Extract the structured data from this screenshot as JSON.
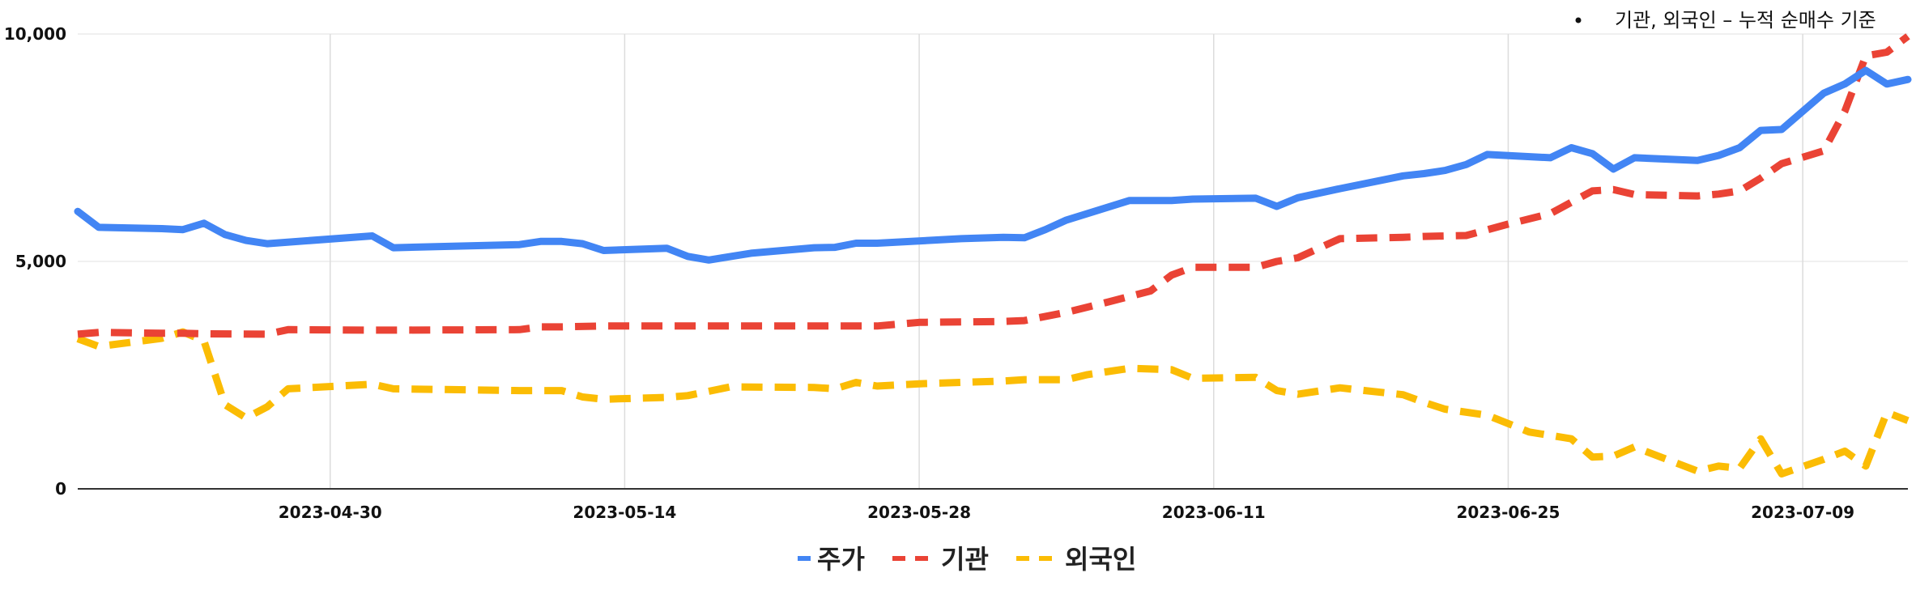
{
  "chart_data": {
    "type": "line",
    "title": "",
    "xlabel": "",
    "ylabel": "",
    "ylim": [
      0,
      10000
    ],
    "xlim": [
      "2023-04-18",
      "2023-07-14"
    ],
    "grid": true,
    "legend_position": "bottom",
    "annotation": "기관, 외국인 – 누적 순매수 기준",
    "y_ticks": [
      {
        "value": 0,
        "label": "0"
      },
      {
        "value": 5000,
        "label": "5,000"
      },
      {
        "value": 10000,
        "label": "10,000"
      }
    ],
    "x_ticks": [
      {
        "value": "2023-04-30",
        "label": "2023-04-30"
      },
      {
        "value": "2023-05-14",
        "label": "2023-05-14"
      },
      {
        "value": "2023-05-28",
        "label": "2023-05-28"
      },
      {
        "value": "2023-06-11",
        "label": "2023-06-11"
      },
      {
        "value": "2023-06-25",
        "label": "2023-06-25"
      },
      {
        "value": "2023-07-09",
        "label": "2023-07-09"
      }
    ],
    "series": [
      {
        "name": "주가",
        "color": "#4285F4",
        "style": "solid",
        "points": [
          [
            "2023-04-18",
            6100
          ],
          [
            "2023-04-19",
            5750
          ],
          [
            "2023-04-22",
            5720
          ],
          [
            "2023-04-23",
            5700
          ],
          [
            "2023-04-24",
            5840
          ],
          [
            "2023-04-25",
            5590
          ],
          [
            "2023-04-26",
            5460
          ],
          [
            "2023-04-27",
            5390
          ],
          [
            "2023-05-02",
            5560
          ],
          [
            "2023-05-03",
            5300
          ],
          [
            "2023-05-09",
            5370
          ],
          [
            "2023-05-10",
            5440
          ],
          [
            "2023-05-11",
            5440
          ],
          [
            "2023-05-12",
            5390
          ],
          [
            "2023-05-13",
            5240
          ],
          [
            "2023-05-16",
            5290
          ],
          [
            "2023-05-17",
            5110
          ],
          [
            "2023-05-18",
            5030
          ],
          [
            "2023-05-20",
            5180
          ],
          [
            "2023-05-23",
            5300
          ],
          [
            "2023-05-24",
            5310
          ],
          [
            "2023-05-25",
            5400
          ],
          [
            "2023-05-26",
            5400
          ],
          [
            "2023-05-30",
            5500
          ],
          [
            "2023-06-01",
            5530
          ],
          [
            "2023-06-02",
            5520
          ],
          [
            "2023-06-03",
            5700
          ],
          [
            "2023-06-04",
            5910
          ],
          [
            "2023-06-07",
            6340
          ],
          [
            "2023-06-09",
            6340
          ],
          [
            "2023-06-10",
            6370
          ],
          [
            "2023-06-13",
            6390
          ],
          [
            "2023-06-14",
            6210
          ],
          [
            "2023-06-15",
            6400
          ],
          [
            "2023-06-17",
            6600
          ],
          [
            "2023-06-20",
            6880
          ],
          [
            "2023-06-21",
            6930
          ],
          [
            "2023-06-22",
            7000
          ],
          [
            "2023-06-23",
            7130
          ],
          [
            "2023-06-24",
            7350
          ],
          [
            "2023-06-27",
            7280
          ],
          [
            "2023-06-28",
            7500
          ],
          [
            "2023-06-29",
            7370
          ],
          [
            "2023-06-30",
            7030
          ],
          [
            "2023-07-01",
            7280
          ],
          [
            "2023-07-04",
            7220
          ],
          [
            "2023-07-05",
            7330
          ],
          [
            "2023-07-06",
            7500
          ],
          [
            "2023-07-07",
            7880
          ],
          [
            "2023-07-08",
            7900
          ],
          [
            "2023-07-10",
            8700
          ],
          [
            "2023-07-11",
            8900
          ],
          [
            "2023-07-12",
            9200
          ],
          [
            "2023-07-13",
            8900
          ],
          [
            "2023-07-14",
            9000
          ]
        ]
      },
      {
        "name": "기관",
        "color": "#EA4335",
        "style": "dashed",
        "points": [
          [
            "2023-04-18",
            3400
          ],
          [
            "2023-04-19",
            3440
          ],
          [
            "2023-04-22",
            3420
          ],
          [
            "2023-04-23",
            3420
          ],
          [
            "2023-04-24",
            3410
          ],
          [
            "2023-04-27",
            3400
          ],
          [
            "2023-04-28",
            3500
          ],
          [
            "2023-05-02",
            3490
          ],
          [
            "2023-05-03",
            3490
          ],
          [
            "2023-05-09",
            3500
          ],
          [
            "2023-05-10",
            3560
          ],
          [
            "2023-05-11",
            3560
          ],
          [
            "2023-05-13",
            3580
          ],
          [
            "2023-05-16",
            3580
          ],
          [
            "2023-05-26",
            3580
          ],
          [
            "2023-05-28",
            3660
          ],
          [
            "2023-06-01",
            3680
          ],
          [
            "2023-06-02",
            3700
          ],
          [
            "2023-06-04",
            3880
          ],
          [
            "2023-06-06",
            4110
          ],
          [
            "2023-06-08",
            4350
          ],
          [
            "2023-06-09",
            4700
          ],
          [
            "2023-06-10",
            4870
          ],
          [
            "2023-06-13",
            4870
          ],
          [
            "2023-06-14",
            5000
          ],
          [
            "2023-06-15",
            5080
          ],
          [
            "2023-06-17",
            5500
          ],
          [
            "2023-06-20",
            5530
          ],
          [
            "2023-06-21",
            5550
          ],
          [
            "2023-06-23",
            5570
          ],
          [
            "2023-06-25",
            5820
          ],
          [
            "2023-06-27",
            6050
          ],
          [
            "2023-06-28",
            6300
          ],
          [
            "2023-06-29",
            6550
          ],
          [
            "2023-06-30",
            6580
          ],
          [
            "2023-07-01",
            6470
          ],
          [
            "2023-07-04",
            6440
          ],
          [
            "2023-07-05",
            6480
          ],
          [
            "2023-07-06",
            6550
          ],
          [
            "2023-07-07",
            6830
          ],
          [
            "2023-07-08",
            7150
          ],
          [
            "2023-07-10",
            7430
          ],
          [
            "2023-07-11",
            8300
          ],
          [
            "2023-07-12",
            9520
          ],
          [
            "2023-07-13",
            9600
          ],
          [
            "2023-07-14",
            9950
          ]
        ]
      },
      {
        "name": "외국인",
        "color": "#FBBC04",
        "style": "dashed",
        "points": [
          [
            "2023-04-18",
            3300
          ],
          [
            "2023-04-19",
            3130
          ],
          [
            "2023-04-22",
            3310
          ],
          [
            "2023-04-23",
            3450
          ],
          [
            "2023-04-24",
            3250
          ],
          [
            "2023-04-25",
            1850
          ],
          [
            "2023-04-26",
            1560
          ],
          [
            "2023-04-27",
            1800
          ],
          [
            "2023-04-28",
            2200
          ],
          [
            "2023-05-02",
            2300
          ],
          [
            "2023-05-03",
            2200
          ],
          [
            "2023-05-09",
            2160
          ],
          [
            "2023-05-10",
            2160
          ],
          [
            "2023-05-11",
            2160
          ],
          [
            "2023-05-12",
            2020
          ],
          [
            "2023-05-13",
            1970
          ],
          [
            "2023-05-16",
            2010
          ],
          [
            "2023-05-17",
            2050
          ],
          [
            "2023-05-19",
            2240
          ],
          [
            "2023-05-23",
            2230
          ],
          [
            "2023-05-24",
            2200
          ],
          [
            "2023-05-25",
            2340
          ],
          [
            "2023-05-26",
            2260
          ],
          [
            "2023-05-28",
            2310
          ],
          [
            "2023-06-01",
            2370
          ],
          [
            "2023-06-02",
            2400
          ],
          [
            "2023-06-04",
            2400
          ],
          [
            "2023-06-05",
            2510
          ],
          [
            "2023-06-07",
            2650
          ],
          [
            "2023-06-09",
            2620
          ],
          [
            "2023-06-10",
            2430
          ],
          [
            "2023-06-13",
            2450
          ],
          [
            "2023-06-14",
            2160
          ],
          [
            "2023-06-15",
            2080
          ],
          [
            "2023-06-17",
            2220
          ],
          [
            "2023-06-20",
            2070
          ],
          [
            "2023-06-21",
            1900
          ],
          [
            "2023-06-22",
            1750
          ],
          [
            "2023-06-24",
            1620
          ],
          [
            "2023-06-26",
            1250
          ],
          [
            "2023-06-28",
            1100
          ],
          [
            "2023-06-29",
            700
          ],
          [
            "2023-06-30",
            720
          ],
          [
            "2023-07-01",
            920
          ],
          [
            "2023-07-04",
            390
          ],
          [
            "2023-07-05",
            500
          ],
          [
            "2023-07-06",
            450
          ],
          [
            "2023-07-07",
            1100
          ],
          [
            "2023-07-08",
            330
          ],
          [
            "2023-07-10",
            650
          ],
          [
            "2023-07-11",
            830
          ],
          [
            "2023-07-12",
            500
          ],
          [
            "2023-07-13",
            1680
          ],
          [
            "2023-07-14",
            1500
          ]
        ]
      }
    ]
  }
}
